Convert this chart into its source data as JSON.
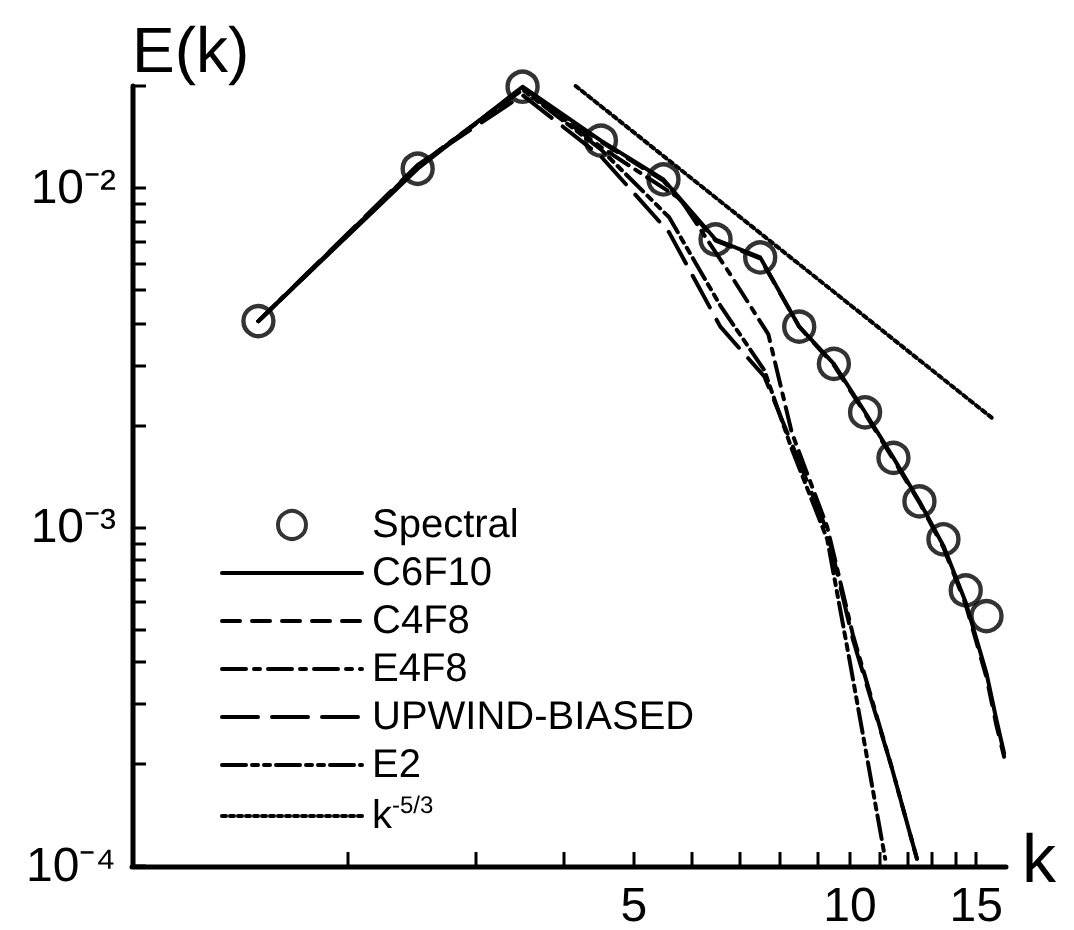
{
  "chart_data": {
    "type": "line",
    "xlabel": "k",
    "ylabel": "E(k)",
    "log": "xy",
    "xlim": [
      1,
      16.5
    ],
    "xticks": [
      {
        "value": 2,
        "label": null
      },
      {
        "value": 3,
        "label": null
      },
      {
        "value": 4,
        "label": null
      },
      5,
      {
        "value": 6,
        "label": null
      },
      {
        "value": 7,
        "label": null
      },
      {
        "value": 8,
        "label": null
      },
      {
        "value": 9,
        "label": null
      },
      10,
      {
        "value": 11,
        "label": null
      },
      {
        "value": 12,
        "label": null
      },
      {
        "value": 13,
        "label": null
      },
      {
        "value": 14,
        "label": null
      },
      15
    ],
    "ylim": [
      0.0001,
      0.02
    ],
    "yticks": [
      {
        "value": 0.0001,
        "label": "10⁻⁴"
      },
      {
        "value": 0.0002,
        "label": null
      },
      {
        "value": 0.0003,
        "label": null
      },
      {
        "value": 0.0004,
        "label": null
      },
      {
        "value": 0.0005,
        "label": null
      },
      {
        "value": 0.0006,
        "label": null
      },
      {
        "value": 0.0007,
        "label": null
      },
      {
        "value": 0.0008,
        "label": null
      },
      {
        "value": 0.0009,
        "label": null
      },
      {
        "value": 0.001,
        "label": "10⁻³"
      },
      {
        "value": 0.002,
        "label": null
      },
      {
        "value": 0.003,
        "label": null
      },
      {
        "value": 0.004,
        "label": null
      },
      {
        "value": 0.005,
        "label": null
      },
      {
        "value": 0.006,
        "label": null
      },
      {
        "value": 0.007,
        "label": null
      },
      {
        "value": 0.008,
        "label": null
      },
      {
        "value": 0.009,
        "label": null
      },
      {
        "value": 0.01,
        "label": "10⁻²"
      },
      {
        "value": 0.02,
        "label": null
      }
    ],
    "grid": false,
    "legend": "bottom left",
    "series": [
      {
        "name": "Spectral",
        "type": "scatter",
        "marker": "circle",
        "color": "#000000",
        "x": [
          1.5,
          2.5,
          3.5,
          4.5,
          5.5,
          6.5,
          7.5,
          8.5,
          9.5,
          10.5,
          11.5,
          12.5,
          13.5,
          14.5,
          15.5
        ],
        "values": [
          0.00405,
          0.0114,
          0.0199,
          0.0138,
          0.0106,
          0.00705,
          0.00624,
          0.0039,
          0.00303,
          0.00218,
          0.0016,
          0.00119,
          0.00092,
          0.00065,
          0.000546
        ]
      },
      {
        "name": "C6F10",
        "line_style": "solid",
        "color": "#000000",
        "x": [
          1.5,
          2.5,
          3.5,
          4.5,
          5.5,
          6.5,
          7.5,
          8.5,
          9.5,
          10.5,
          11.5,
          12.5,
          13.5,
          14.5,
          15.5,
          16,
          16.4
        ],
        "values": [
          0.00405,
          0.0114,
          0.0199,
          0.0138,
          0.0106,
          0.00705,
          0.00624,
          0.0039,
          0.00303,
          0.00218,
          0.0016,
          0.00119,
          0.00088,
          0.0006,
          0.00037,
          0.00027,
          0.000215
        ]
      },
      {
        "name": "C4F8",
        "line_style": "dashed",
        "color": "#000000",
        "x": [
          1.5,
          2.5,
          3.5,
          4.5,
          5.5,
          6.5,
          7.5,
          8.5,
          9.5,
          10.5,
          11.5,
          12.5,
          13.5,
          14.5,
          15.5,
          16,
          16.4
        ],
        "values": [
          0.00405,
          0.0115,
          0.0198,
          0.0137,
          0.0105,
          0.007,
          0.0062,
          0.0039,
          0.003,
          0.00216,
          0.00158,
          0.00118,
          0.00087,
          0.00059,
          0.00036,
          0.00026,
          0.00021
        ]
      },
      {
        "name": "E4F8",
        "line_style": "dashdot",
        "color": "#000000",
        "x": [
          1.5,
          2.5,
          3.5,
          4.5,
          5.8,
          6.8,
          7.7,
          8.3,
          9.3,
          10.1,
          11.4,
          12.4
        ],
        "values": [
          0.00405,
          0.0116,
          0.0197,
          0.0132,
          0.0093,
          0.0056,
          0.0037,
          0.0019,
          0.001,
          0.00048,
          0.0002,
          0.000105
        ]
      },
      {
        "name": "UPWIND-BIASED",
        "line_style": "longdash",
        "color": "#000000",
        "x": [
          1.5,
          2.5,
          3.5,
          4.5,
          5.6,
          6.6,
          7.6,
          8.3,
          9.3,
          10.1,
          11.4,
          12.4
        ],
        "values": [
          0.00405,
          0.0117,
          0.0188,
          0.0124,
          0.0074,
          0.0039,
          0.00278,
          0.00176,
          0.00097,
          0.000465,
          0.0002,
          0.000105
        ]
      },
      {
        "name": "E2",
        "line_style": "dashdotdot",
        "color": "#000000",
        "x": [
          1.5,
          2.5,
          3.5,
          4.5,
          5.6,
          6.6,
          7.6,
          8.3,
          9.3,
          10,
          11.2
        ],
        "values": [
          0.00405,
          0.0116,
          0.0195,
          0.013,
          0.0082,
          0.0045,
          0.0029,
          0.0017,
          0.00092,
          0.0004,
          0.000105
        ]
      },
      {
        "name": "k$^{-5/3}$",
        "line_style": "dotted",
        "color": "#000000",
        "x": [
          4.15,
          15.9
        ],
        "values": [
          0.02,
          0.00207
        ]
      }
    ]
  }
}
